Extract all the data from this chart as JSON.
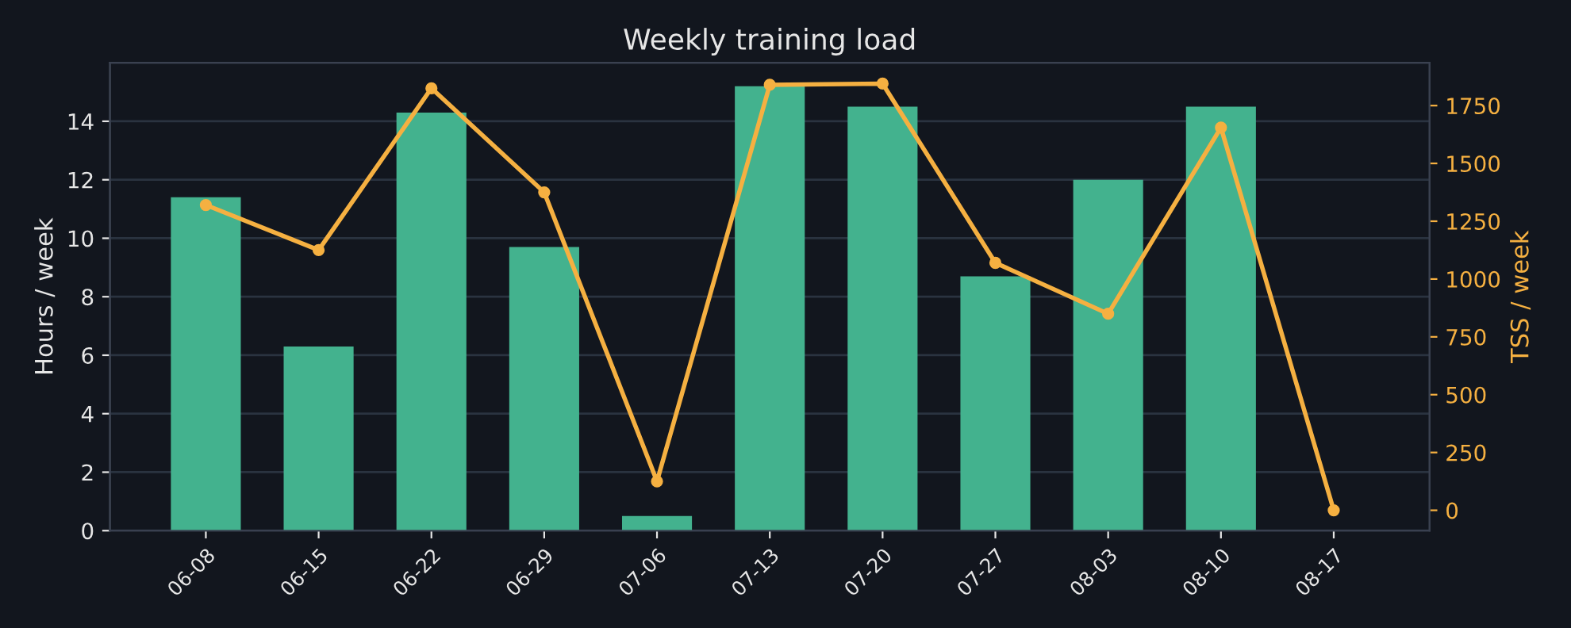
{
  "chart_data": {
    "type": "bar",
    "title": "Weekly training load",
    "ylabel": "Hours / week",
    "y2label": "TSS / week",
    "categories": [
      "06-08",
      "06-15",
      "06-22",
      "06-29",
      "07-06",
      "07-13",
      "07-20",
      "07-27",
      "08-03",
      "08-10",
      "08-17"
    ],
    "series": [
      {
        "color": "#43b28e",
        "values": [
          11.4,
          6.3,
          14.3,
          9.7,
          0.5,
          15.2,
          14.5,
          8.7,
          12.0,
          14.5,
          0
        ]
      },
      {
        "type": "line",
        "axis": "y2",
        "color": "#f5b041",
        "marker": "circle",
        "line_style": "solid",
        "values": [
          1320,
          1125,
          1825,
          1375,
          125,
          1840,
          1845,
          1070,
          850,
          1655,
          0
        ]
      }
    ],
    "ylim": [
      0,
      16
    ],
    "yticks": [
      0,
      2,
      4,
      6,
      8,
      10,
      12,
      14
    ],
    "y2lim": [
      -88,
      1935
    ],
    "y2ticks": [
      0,
      250,
      500,
      750,
      1000,
      1250,
      1500,
      1750
    ],
    "grid": "y",
    "legend": false
  }
}
